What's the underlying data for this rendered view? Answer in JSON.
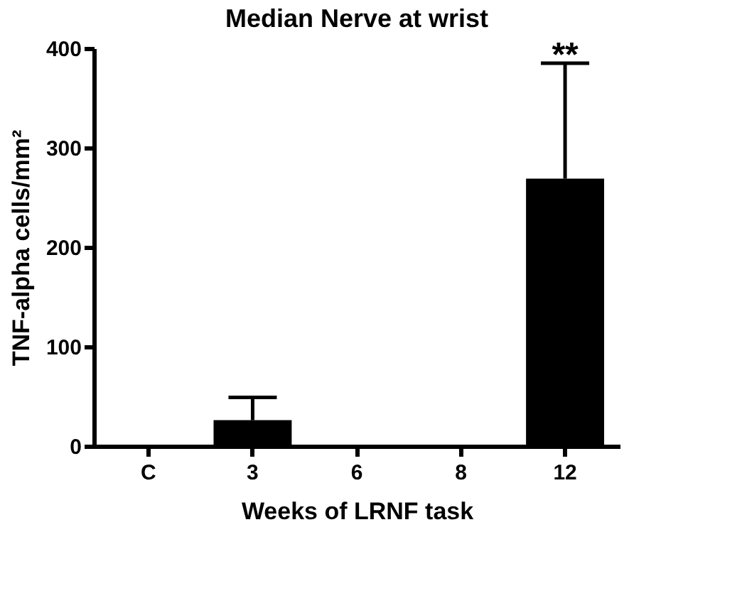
{
  "chart_data": {
    "type": "bar",
    "title": "Median Nerve at wrist",
    "xlabel": "Weeks of LRNF task",
    "ylabel": "TNF-alpha cells/mm²",
    "categories": [
      "C",
      "3",
      "6",
      "8",
      "12"
    ],
    "values": [
      0,
      26,
      0,
      0,
      269
    ],
    "errors": [
      null,
      [
        26,
        49
      ],
      null,
      null,
      [
        269,
        385
      ]
    ],
    "color": "#000000",
    "ylim": [
      0,
      400
    ],
    "yticks": [
      0,
      100,
      200,
      300,
      400
    ],
    "grid": false,
    "annotations": [
      {
        "text": "**",
        "x": "12",
        "y": 392
      }
    ]
  }
}
